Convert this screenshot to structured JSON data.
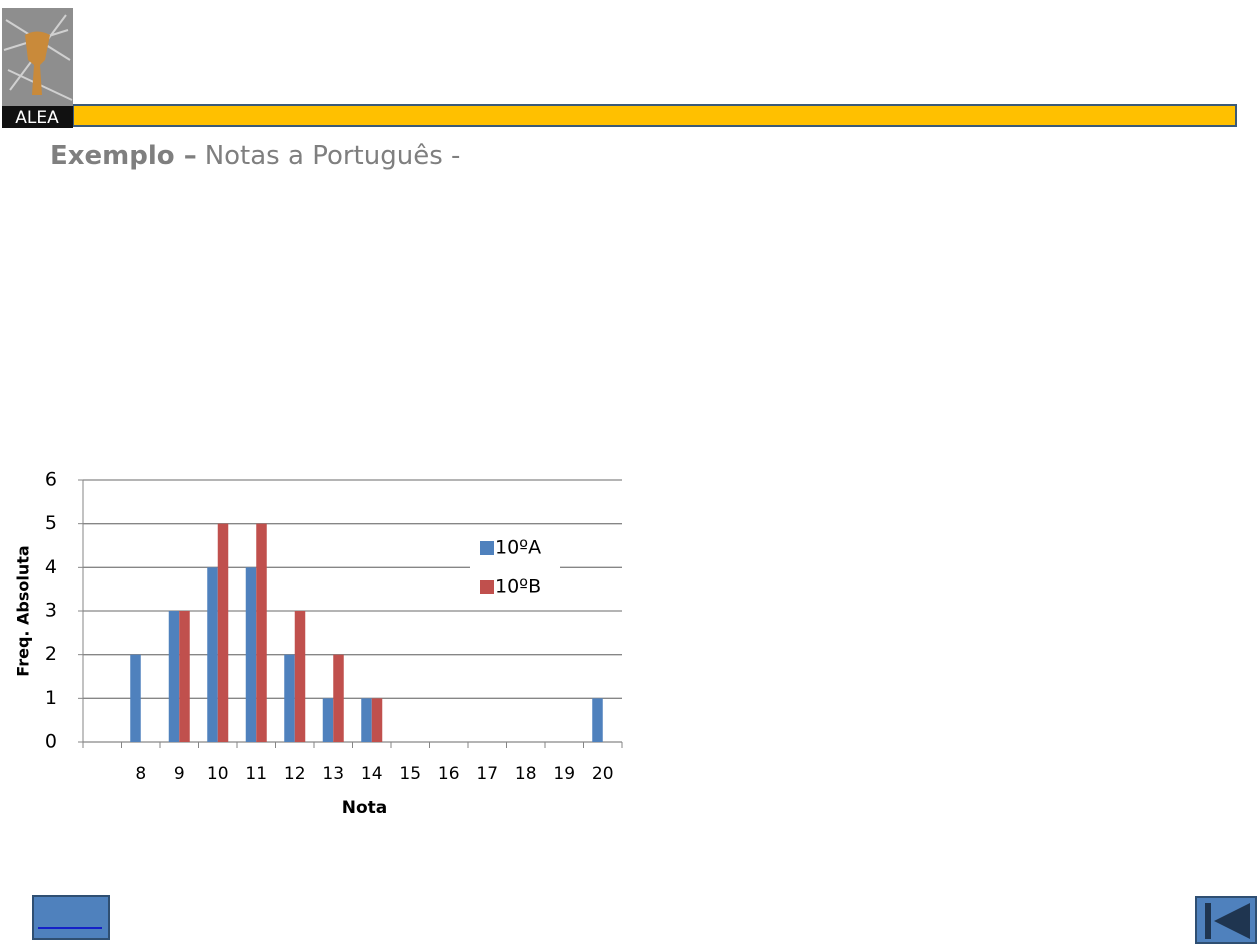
{
  "header": {
    "logo_text": "ALEA",
    "title_bold": "Exemplo –",
    "title_rest": "Notas a Português -"
  },
  "chart_data": {
    "type": "bar",
    "categories": [
      null,
      "8",
      "9",
      "10",
      "11",
      "12",
      "13",
      "14",
      "15",
      "16",
      "17",
      "18",
      "19",
      "20"
    ],
    "series": [
      {
        "name": "10ºA",
        "color": "#4f81bd",
        "values": [
          null,
          2,
          3,
          4,
          4,
          2,
          1,
          1,
          0,
          0,
          0,
          0,
          0,
          1
        ]
      },
      {
        "name": "10ºB",
        "color": "#c0504d",
        "values": [
          null,
          0,
          3,
          5,
          5,
          3,
          2,
          1,
          0,
          0,
          0,
          0,
          0,
          0
        ]
      }
    ],
    "x_label": "Nota",
    "y_label": "Freq. Absoluta",
    "ylim": [
      0,
      6
    ],
    "yticks": [
      0,
      1,
      2,
      3,
      4,
      5,
      6
    ],
    "grid": true,
    "legend": "upper right"
  }
}
